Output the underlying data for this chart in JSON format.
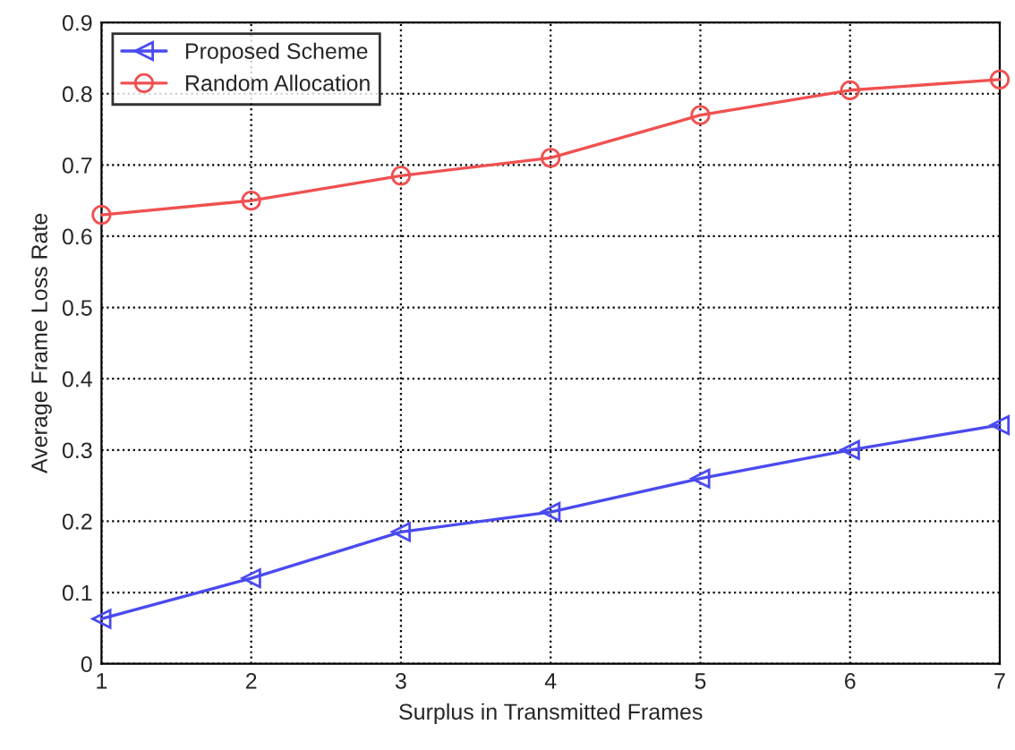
{
  "chart_data": {
    "type": "line",
    "xlabel": "Surplus in Transmitted Frames",
    "ylabel": "Average Frame Loss Rate",
    "x": [
      1,
      2,
      3,
      4,
      5,
      6,
      7
    ],
    "series": [
      {
        "name": "Proposed Scheme",
        "color": "#4a4af0",
        "marker": "triangle",
        "values": [
          0.063,
          0.12,
          0.185,
          0.213,
          0.26,
          0.3,
          0.335
        ]
      },
      {
        "name": "Random Allocation",
        "color": "#f05050",
        "marker": "circle",
        "values": [
          0.63,
          0.65,
          0.685,
          0.71,
          0.77,
          0.805,
          0.82
        ]
      }
    ],
    "xlim": [
      1,
      7
    ],
    "xticks": [
      1,
      2,
      3,
      4,
      5,
      6,
      7
    ],
    "ylim": [
      0,
      0.9
    ],
    "yticks": [
      0,
      0.1,
      0.2,
      0.3,
      0.4,
      0.5,
      0.6,
      0.7,
      0.8,
      0.9
    ],
    "grid": true,
    "legend": "top left",
    "line_style": "solid"
  }
}
